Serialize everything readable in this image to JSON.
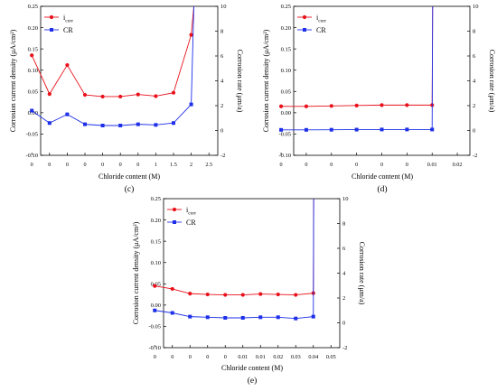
{
  "chart_data": [
    {
      "type": "line",
      "panel_label": "(c)",
      "xlabel": "Chloride content (M)",
      "ylabel": "Corrosion current density (μA/cm²)",
      "y2label": "Corrosion rate (μm/a)",
      "ylim": [
        -0.1,
        0.25
      ],
      "y_ticks": [
        "-0.10",
        "-0.05",
        "0.00",
        "0.05",
        "0.10",
        "0.15",
        "0.20",
        "0.25"
      ],
      "y2lim": [
        -2,
        10
      ],
      "y2_ticks": [
        "-2",
        "0",
        "2",
        "4",
        "6",
        "8",
        "10"
      ],
      "x_tick_labels": [
        "0",
        "0",
        "0",
        "0",
        "0",
        "0",
        "0",
        "1",
        "1.5",
        "2",
        "2.5"
      ],
      "legend": {
        "position": "top-left",
        "entries": [
          "i",
          "CR"
        ],
        "subscript": "corr"
      },
      "series": [
        {
          "name": "i_corr",
          "color": "#e8101a",
          "marker": "circle",
          "axis": "left",
          "values": [
            0.135,
            0.044,
            0.112,
            0.042,
            0.038,
            0.038,
            0.043,
            0.039,
            0.047,
            0.183
          ],
          "end_value": 0.25
        },
        {
          "name": "CR",
          "color": "#1d2fe8",
          "marker": "square",
          "axis": "right",
          "values": [
            1.6,
            0.6,
            1.3,
            0.5,
            0.4,
            0.4,
            0.5,
            0.45,
            0.6,
            2.1
          ],
          "end_value": 10
        }
      ]
    },
    {
      "type": "line",
      "panel_label": "(d)",
      "xlabel": "Chloride content (M)",
      "ylabel": "Corrosion current density (μA/cm²)",
      "y2label": "Corrosion rate (μm/a)",
      "ylim": [
        -0.1,
        0.25
      ],
      "y_ticks": [
        "-0.10",
        "-0.05",
        "0.00",
        "0.05",
        "0.10",
        "0.15",
        "0.20",
        "0.25"
      ],
      "y2lim": [
        -2,
        10
      ],
      "y2_ticks": [
        "-2",
        "0",
        "2",
        "4",
        "6",
        "8",
        "10"
      ],
      "x_tick_labels": [
        "0",
        "0",
        "0",
        "0",
        "0",
        "0",
        "0.01",
        "0.02"
      ],
      "legend": {
        "position": "top-left",
        "entries": [
          "i",
          "CR"
        ],
        "subscript": "corr"
      },
      "series": [
        {
          "name": "i_corr",
          "color": "#e8101a",
          "marker": "circle",
          "axis": "left",
          "values": [
            0.015,
            0.015,
            0.016,
            0.017,
            0.018,
            0.018,
            0.018
          ],
          "end_value": 0.25
        },
        {
          "name": "CR",
          "color": "#1d2fe8",
          "marker": "square",
          "axis": "right",
          "values": [
            0.05,
            0.05,
            0.06,
            0.07,
            0.08,
            0.08,
            0.08
          ],
          "end_value": 10
        }
      ]
    },
    {
      "type": "line",
      "panel_label": "(e)",
      "xlabel": "Chloride content (M)",
      "ylabel": "Corrosion current density (μA/cm²)",
      "y2label": "Corrosion rate (μm/a)",
      "ylim": [
        -0.1,
        0.25
      ],
      "y_ticks": [
        "-0.10",
        "-0.05",
        "0.00",
        "0.05",
        "0.10",
        "0.15",
        "0.20",
        "0.25"
      ],
      "y2lim": [
        -2,
        10
      ],
      "y2_ticks": [
        "-2",
        "0",
        "2",
        "4",
        "6",
        "8",
        "10"
      ],
      "x_tick_labels": [
        "0",
        "0",
        "0",
        "0",
        "0",
        "0.01",
        "0.01",
        "0.02",
        "0.03",
        "0.04",
        "0.05"
      ],
      "legend": {
        "position": "top-left",
        "entries": [
          "i",
          "CR"
        ],
        "subscript": "corr"
      },
      "series": [
        {
          "name": "i_corr",
          "color": "#e8101a",
          "marker": "circle",
          "axis": "left",
          "values": [
            0.045,
            0.038,
            0.027,
            0.025,
            0.024,
            0.024,
            0.026,
            0.025,
            0.024,
            0.028
          ],
          "end_value": 0.25
        },
        {
          "name": "CR",
          "color": "#1d2fe8",
          "marker": "square",
          "axis": "right",
          "values": [
            1.0,
            0.8,
            0.5,
            0.45,
            0.4,
            0.4,
            0.45,
            0.45,
            0.35,
            0.5
          ],
          "end_value": 10
        }
      ]
    }
  ]
}
